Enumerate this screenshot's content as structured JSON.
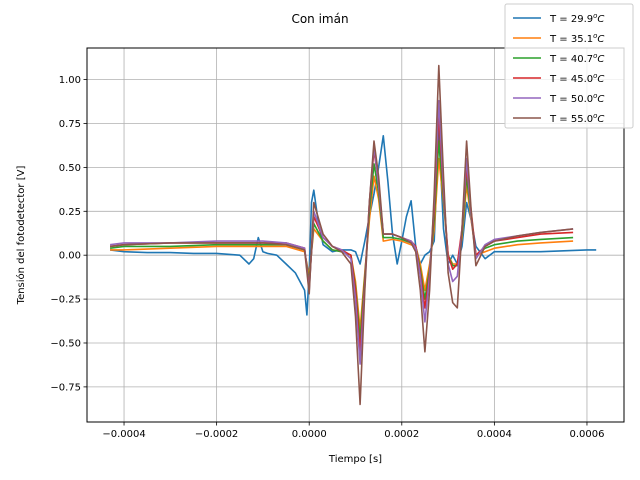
{
  "chart_data": {
    "type": "line",
    "title": "Con imán",
    "xlabel": "Tiempo [s]",
    "ylabel": "Tensión del fotodetector [V]",
    "xlim": [
      -0.00048,
      0.00068
    ],
    "ylim": [
      -0.95,
      1.18
    ],
    "xticks": [
      -0.0004,
      -0.0002,
      0.0,
      0.0002,
      0.0004,
      0.0006
    ],
    "xtick_labels": [
      "−0.0004",
      "−0.0002",
      "0.0000",
      "0.0002",
      "0.0004",
      "0.0006"
    ],
    "yticks": [
      -0.75,
      -0.5,
      -0.25,
      0.0,
      0.25,
      0.5,
      0.75,
      1.0
    ],
    "ytick_labels": [
      "−0.75",
      "−0.50",
      "−0.25",
      "0.00",
      "0.25",
      "0.50",
      "0.75",
      "1.00"
    ],
    "grid": true,
    "legend_position": "top-right",
    "series": [
      {
        "name": "T = 29.9ºC",
        "name_base": "T = 29.9",
        "name_unit": "C",
        "color": "#1f77b4",
        "x": [
          -0.00043,
          -0.0004,
          -0.00035,
          -0.0003,
          -0.00025,
          -0.0002,
          -0.00015,
          -0.00013,
          -0.00012,
          -0.00011,
          -0.0001,
          -9e-05,
          -7e-05,
          -5e-05,
          -3e-05,
          -1e-05,
          -5e-06,
          0.0,
          5e-06,
          1e-05,
          2e-05,
          3e-05,
          5e-05,
          7e-05,
          9e-05,
          0.0001,
          0.00011,
          0.00012,
          0.00013,
          0.00014,
          0.00015,
          0.00016,
          0.00017,
          0.00018,
          0.00019,
          0.0002,
          0.00021,
          0.00022,
          0.00023,
          0.00024,
          0.00025,
          0.00026,
          0.00027,
          0.00028,
          0.00029,
          0.0003,
          0.00031,
          0.00032,
          0.00033,
          0.00034,
          0.00035,
          0.00036,
          0.00038,
          0.0004,
          0.00045,
          0.0005,
          0.00055,
          0.0006,
          0.00062
        ],
        "y": [
          0.03,
          0.02,
          0.015,
          0.015,
          0.01,
          0.01,
          0.0,
          -0.05,
          -0.02,
          0.1,
          0.02,
          0.01,
          0.0,
          -0.05,
          -0.1,
          -0.2,
          -0.34,
          -0.1,
          0.3,
          0.37,
          0.18,
          0.06,
          0.02,
          0.03,
          0.03,
          0.02,
          -0.05,
          0.08,
          0.22,
          0.35,
          0.5,
          0.68,
          0.42,
          0.12,
          -0.05,
          0.08,
          0.22,
          0.31,
          0.05,
          -0.05,
          0.0,
          0.02,
          0.08,
          0.72,
          0.15,
          -0.05,
          0.0,
          -0.05,
          0.05,
          0.3,
          0.2,
          0.05,
          -0.02,
          0.02,
          0.02,
          0.02,
          0.025,
          0.03,
          0.03
        ]
      },
      {
        "name": "T = 35.1ºC",
        "name_base": "T = 35.1",
        "name_unit": "C",
        "color": "#ff7f0e",
        "x": [
          -0.00043,
          -0.0004,
          -0.0003,
          -0.0002,
          -0.0001,
          -5e-05,
          -1e-05,
          0.0,
          1e-05,
          3e-05,
          5e-05,
          7e-05,
          9e-05,
          0.0001,
          0.00011,
          0.00012,
          0.00013,
          0.00014,
          0.00015,
          0.00016,
          0.00018,
          0.0002,
          0.00022,
          0.00023,
          0.00024,
          0.00025,
          0.00026,
          0.00027,
          0.00028,
          0.00029,
          0.0003,
          0.00031,
          0.00032,
          0.00033,
          0.00034,
          0.00035,
          0.00036,
          0.00038,
          0.0004,
          0.00045,
          0.0005,
          0.00057
        ],
        "y": [
          0.03,
          0.03,
          0.04,
          0.05,
          0.05,
          0.05,
          0.02,
          -0.12,
          0.15,
          0.08,
          0.03,
          0.02,
          0.0,
          -0.15,
          -0.42,
          -0.1,
          0.2,
          0.45,
          0.32,
          0.08,
          0.09,
          0.08,
          0.06,
          0.05,
          -0.05,
          -0.2,
          -0.05,
          0.15,
          0.55,
          0.3,
          0.0,
          -0.05,
          -0.05,
          0.1,
          0.4,
          0.2,
          0.0,
          0.02,
          0.04,
          0.06,
          0.07,
          0.08
        ]
      },
      {
        "name": "T = 40.7ºC",
        "name_base": "T = 40.7",
        "name_unit": "C",
        "color": "#2ca02c",
        "x": [
          -0.00043,
          -0.0004,
          -0.0003,
          -0.0002,
          -0.0001,
          -5e-05,
          -1e-05,
          0.0,
          1e-05,
          3e-05,
          5e-05,
          7e-05,
          9e-05,
          0.0001,
          0.00011,
          0.00012,
          0.00013,
          0.00014,
          0.00015,
          0.00016,
          0.00018,
          0.0002,
          0.00022,
          0.00023,
          0.00024,
          0.00025,
          0.00026,
          0.00027,
          0.00028,
          0.00029,
          0.0003,
          0.00031,
          0.00032,
          0.00033,
          0.00034,
          0.00035,
          0.00036,
          0.00038,
          0.0004,
          0.00045,
          0.0005,
          0.00057
        ],
        "y": [
          0.04,
          0.05,
          0.05,
          0.06,
          0.06,
          0.06,
          0.03,
          -0.15,
          0.18,
          0.08,
          0.03,
          0.02,
          0.0,
          -0.18,
          -0.48,
          -0.12,
          0.25,
          0.52,
          0.36,
          0.1,
          0.1,
          0.09,
          0.07,
          0.05,
          -0.08,
          -0.25,
          -0.08,
          0.2,
          0.65,
          0.32,
          0.0,
          -0.06,
          -0.06,
          0.12,
          0.45,
          0.22,
          0.0,
          0.04,
          0.06,
          0.08,
          0.09,
          0.1
        ]
      },
      {
        "name": "T = 45.0ºC",
        "name_base": "T = 45.0",
        "name_unit": "C",
        "color": "#d62728",
        "x": [
          -0.00043,
          -0.0004,
          -0.0003,
          -0.0002,
          -0.0001,
          -5e-05,
          -1e-05,
          0.0,
          1e-05,
          3e-05,
          5e-05,
          7e-05,
          9e-05,
          0.0001,
          0.00011,
          0.00012,
          0.00013,
          0.00014,
          0.00015,
          0.00016,
          0.00018,
          0.0002,
          0.00022,
          0.00023,
          0.00024,
          0.00025,
          0.00026,
          0.00027,
          0.00028,
          0.00029,
          0.0003,
          0.00031,
          0.00032,
          0.00033,
          0.00034,
          0.00035,
          0.00036,
          0.00038,
          0.0004,
          0.00045,
          0.0005,
          0.00057
        ],
        "y": [
          0.05,
          0.06,
          0.07,
          0.07,
          0.07,
          0.07,
          0.04,
          -0.18,
          0.22,
          0.1,
          0.05,
          0.03,
          0.0,
          -0.2,
          -0.55,
          -0.15,
          0.3,
          0.6,
          0.4,
          0.12,
          0.12,
          0.1,
          0.08,
          0.05,
          -0.1,
          -0.3,
          -0.1,
          0.25,
          0.8,
          0.35,
          0.0,
          -0.08,
          -0.05,
          0.15,
          0.5,
          0.25,
          0.0,
          0.05,
          0.08,
          0.1,
          0.12,
          0.13
        ]
      },
      {
        "name": "T = 50.0ºC",
        "name_base": "T = 50.0",
        "name_unit": "C",
        "color": "#9467bd",
        "x": [
          -0.00043,
          -0.0004,
          -0.0003,
          -0.0002,
          -0.0001,
          -5e-05,
          -1e-05,
          0.0,
          1e-05,
          3e-05,
          5e-05,
          7e-05,
          9e-05,
          0.0001,
          0.00011,
          0.00012,
          0.00013,
          0.00014,
          0.00015,
          0.00016,
          0.00018,
          0.0002,
          0.00022,
          0.00023,
          0.00024,
          0.00025,
          0.00026,
          0.00027,
          0.00028,
          0.00029,
          0.0003,
          0.00031,
          0.00032,
          0.00033,
          0.00034,
          0.00035,
          0.00036,
          0.00038,
          0.0004,
          0.00045,
          0.0005,
          0.00057
        ],
        "y": [
          0.06,
          0.07,
          0.07,
          0.08,
          0.08,
          0.07,
          0.04,
          -0.2,
          0.25,
          0.1,
          0.05,
          0.03,
          -0.02,
          -0.25,
          -0.62,
          -0.18,
          0.3,
          0.62,
          0.4,
          0.12,
          0.12,
          0.1,
          0.08,
          0.04,
          -0.12,
          -0.38,
          -0.12,
          0.3,
          0.88,
          0.38,
          -0.05,
          -0.15,
          -0.12,
          0.15,
          0.55,
          0.22,
          -0.02,
          0.06,
          0.09,
          0.11,
          0.13,
          0.15
        ]
      },
      {
        "name": "T = 55.0ºC",
        "name_base": "T = 55.0",
        "name_unit": "C",
        "color": "#8c564b",
        "x": [
          -0.00043,
          -0.0004,
          -0.0003,
          -0.0002,
          -0.0001,
          -5e-05,
          -1e-05,
          0.0,
          1e-05,
          3e-05,
          5e-05,
          7e-05,
          9e-05,
          0.0001,
          0.00011,
          0.00012,
          0.00013,
          0.00014,
          0.00015,
          0.00016,
          0.00018,
          0.0002,
          0.00022,
          0.00023,
          0.00024,
          0.00025,
          0.00026,
          0.00027,
          0.00028,
          0.00029,
          0.0003,
          0.00031,
          0.00032,
          0.00033,
          0.00034,
          0.00035,
          0.00036,
          0.00038,
          0.0004,
          0.00045,
          0.0005,
          0.00057
        ],
        "y": [
          0.05,
          0.06,
          0.07,
          0.07,
          0.07,
          0.06,
          0.03,
          -0.22,
          0.3,
          0.12,
          0.05,
          0.02,
          -0.05,
          -0.35,
          -0.85,
          -0.2,
          0.3,
          0.65,
          0.45,
          0.12,
          0.12,
          0.1,
          0.07,
          0.02,
          -0.2,
          -0.55,
          -0.2,
          0.35,
          1.08,
          0.45,
          -0.1,
          -0.27,
          -0.3,
          0.15,
          0.65,
          0.25,
          -0.06,
          0.05,
          0.08,
          0.11,
          0.13,
          0.15
        ]
      }
    ]
  }
}
